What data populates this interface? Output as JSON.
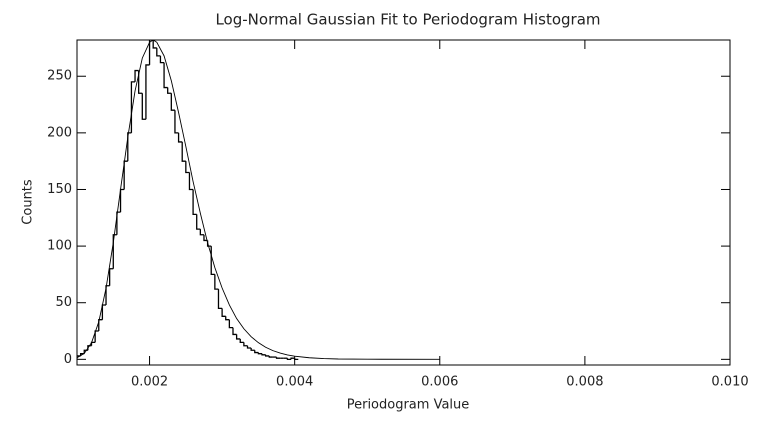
{
  "chart_data": {
    "type": "histogram",
    "title": "Log-Normal Gaussian Fit to Periodogram Histogram",
    "x_label": "Periodogram Value",
    "y_label": "Counts",
    "xlim": [
      0.001,
      0.01
    ],
    "ylim": [
      -5,
      282
    ],
    "xticks": [
      0.002,
      0.004,
      0.006,
      0.008,
      {
        "value": 0.01,
        "label": "0.010"
      }
    ],
    "yticks": [
      0,
      50,
      100,
      150,
      200,
      250
    ],
    "color": "#000000",
    "bins": [
      0.001,
      0.00105,
      0.0011,
      0.00115,
      0.0012,
      0.00125,
      0.0013,
      0.00135,
      0.0014,
      0.00145,
      0.0015,
      0.00155,
      0.0016,
      0.00165,
      0.0017,
      0.00175,
      0.0018,
      0.00185,
      0.0019,
      0.00195,
      0.002,
      0.00205,
      0.0021,
      0.00215,
      0.0022,
      0.00225,
      0.0023,
      0.00235,
      0.0024,
      0.00245,
      0.0025,
      0.00255,
      0.0026,
      0.00265,
      0.0027,
      0.00275,
      0.0028,
      0.00285,
      0.0029,
      0.00295,
      0.003,
      0.00305,
      0.0031,
      0.00315,
      0.0032,
      0.00325,
      0.0033,
      0.00335,
      0.0034,
      0.00345,
      0.0035,
      0.00355,
      0.0036,
      0.00365,
      0.0037,
      0.00375,
      0.0038,
      0.00385,
      0.0039,
      0.00395,
      0.004,
      0.00405
    ],
    "counts": [
      3,
      5,
      8,
      12,
      15,
      25,
      35,
      48,
      65,
      80,
      110,
      130,
      150,
      175,
      200,
      245,
      255,
      235,
      212,
      260,
      282,
      275,
      268,
      262,
      240,
      235,
      220,
      200,
      192,
      175,
      165,
      150,
      128,
      115,
      110,
      105,
      100,
      75,
      62,
      45,
      38,
      35,
      28,
      22,
      18,
      15,
      12,
      10,
      8,
      6,
      5,
      4,
      3,
      2,
      2,
      1,
      1,
      1,
      0,
      1,
      0
    ],
    "fit": {
      "x": [
        0.001,
        0.0011,
        0.0012,
        0.0013,
        0.0014,
        0.0015,
        0.0016,
        0.0017,
        0.0018,
        0.0019,
        0.002,
        0.00205,
        0.0021,
        0.0022,
        0.0023,
        0.0024,
        0.0025,
        0.0026,
        0.0027,
        0.0028,
        0.0029,
        0.003,
        0.0031,
        0.0032,
        0.0033,
        0.0034,
        0.0035,
        0.0036,
        0.0037,
        0.0038,
        0.0039,
        0.004,
        0.0042,
        0.0044,
        0.0046,
        0.005,
        0.006
      ],
      "y": [
        1.4,
        5.2,
        14.6,
        33.1,
        62.7,
        103,
        150,
        196,
        237,
        266,
        280,
        282,
        280,
        268,
        246,
        218,
        188,
        157,
        129,
        103,
        81,
        63,
        48,
        36,
        27,
        20,
        14.7,
        10.7,
        7.7,
        5.5,
        3.9,
        2.8,
        1.4,
        0.7,
        0.3,
        0.1,
        0
      ]
    }
  }
}
